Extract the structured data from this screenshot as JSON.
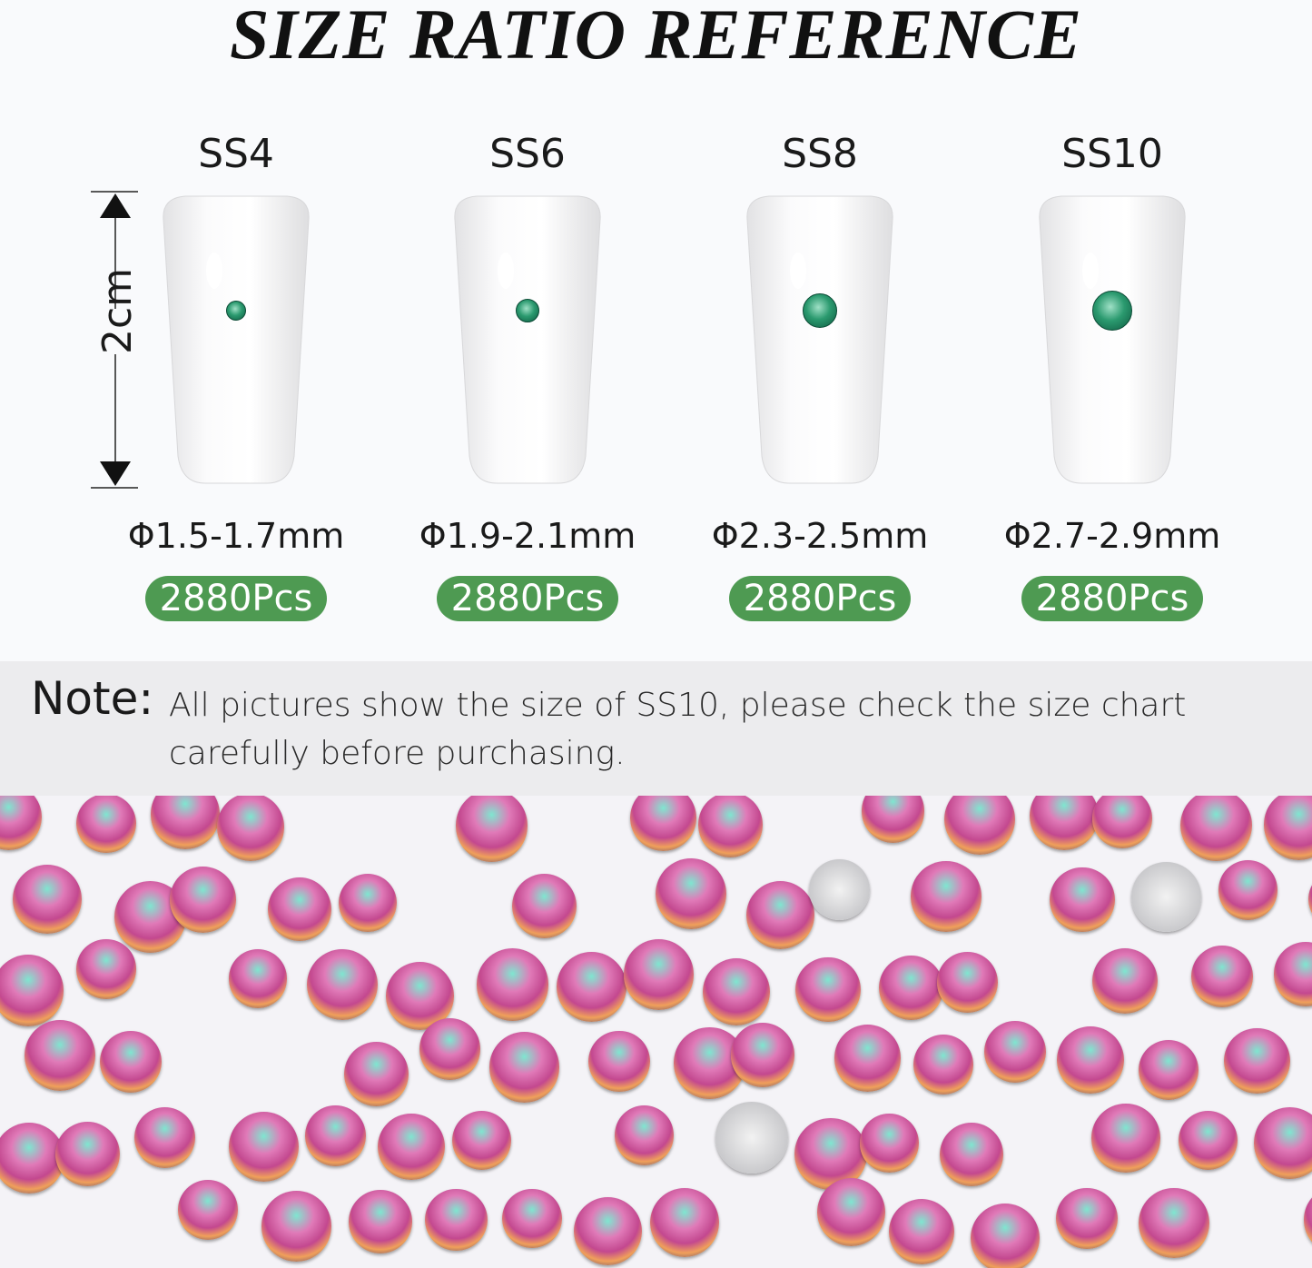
{
  "title": "SIZE RATIO REFERENCE",
  "ruler": {
    "label": "2cm"
  },
  "sizes": [
    {
      "label": "SS4",
      "diameter": "Φ1.5-1.7mm",
      "quantity": "2880Pcs"
    },
    {
      "label": "SS6",
      "diameter": "Φ1.9-2.1mm",
      "quantity": "2880Pcs"
    },
    {
      "label": "SS8",
      "diameter": "Φ2.3-2.5mm",
      "quantity": "2880Pcs"
    },
    {
      "label": "SS10",
      "diameter": "Φ2.7-2.9mm",
      "quantity": "2880Pcs"
    }
  ],
  "note": {
    "label": "Note:",
    "text": "All pictures show the size of SS10, please check the size chart carefully before purchasing."
  },
  "colors": {
    "badge": "#4e9a52",
    "gem": "#2b9a6f",
    "note_bg": "#ececee"
  }
}
